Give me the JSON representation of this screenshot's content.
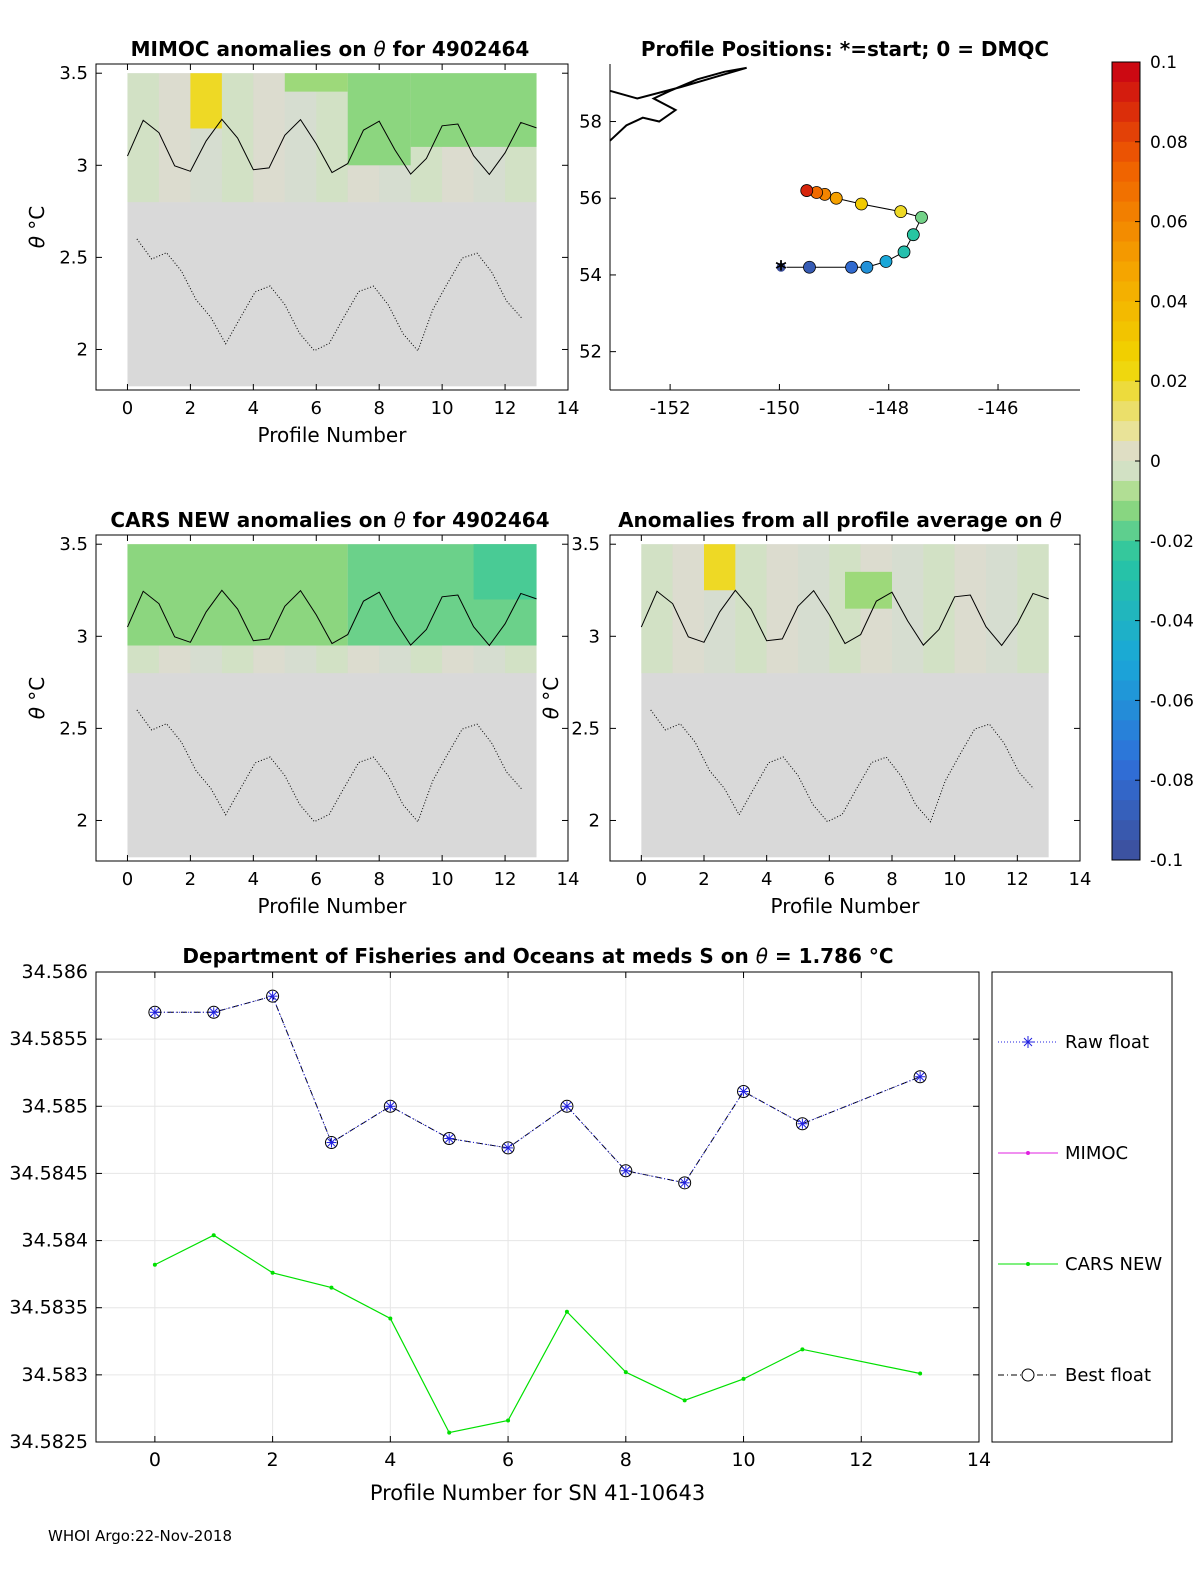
{
  "colors": {
    "neutral": "#d9d9d9",
    "raw_float": "#2020e0",
    "mimoc": "#e020e0",
    "cars": "#00e000",
    "best": "#000000"
  },
  "colorbar": {
    "ticks": [
      "0.1",
      "0.08",
      "0.06",
      "0.04",
      "0.02",
      "0",
      "-0.02",
      "-0.04",
      "-0.06",
      "-0.08",
      "-0.1"
    ],
    "range": [
      -0.1,
      0.1
    ],
    "colormap": "parula-jet"
  },
  "footer": "WHOI Argo:22-Nov-2018",
  "chart_data": [
    {
      "id": "mimoc",
      "type": "heatmap",
      "title_prefix": "MIMOC anomalies on",
      "title_symbol": "θ",
      "title_suffix": "for 4902464",
      "xlabel": "Profile Number",
      "ylabel_symbol": "θ",
      "ylabel_unit": "°C",
      "xlim": [
        -1,
        14
      ],
      "ylim": [
        1.78,
        3.55
      ],
      "xticks": [
        "0",
        "2",
        "4",
        "6",
        "8",
        "10",
        "12",
        "14"
      ],
      "yticks": [
        "2",
        "2.5",
        "3",
        "3.5"
      ],
      "anomaly_cells": [
        {
          "x0": 2,
          "x1": 3,
          "y0": 3.2,
          "y1": 3.5,
          "v": 0.02
        },
        {
          "x0": 7,
          "x1": 9,
          "y0": 3.0,
          "y1": 3.5,
          "v": -0.012
        },
        {
          "x0": 9,
          "x1": 13,
          "y0": 3.1,
          "y1": 3.5,
          "v": -0.012
        },
        {
          "x0": 5,
          "x1": 7,
          "y0": 3.4,
          "y1": 3.5,
          "v": -0.01
        }
      ]
    },
    {
      "id": "positions",
      "type": "scatter",
      "title": "Profile Positions: *=start; 0 = DMQC",
      "xlim": [
        -153.1,
        -144.5
      ],
      "ylim": [
        51,
        59.5
      ],
      "xticks": [
        "-152",
        "-150",
        "-148",
        "-146"
      ],
      "yticks": [
        "52",
        "54",
        "56",
        "58"
      ],
      "lon": [
        -149.97,
        -149.45,
        -148.68,
        -148.4,
        -148.05,
        -147.72,
        -147.55,
        -147.4,
        -147.78,
        -148.5,
        -148.96,
        -149.17,
        -149.32,
        -149.5
      ],
      "lat": [
        54.2,
        54.2,
        54.2,
        54.2,
        54.35,
        54.6,
        55.05,
        55.5,
        55.65,
        55.85,
        56.0,
        56.1,
        56.15,
        56.2
      ],
      "anomaly": [
        -0.1,
        -0.09,
        -0.08,
        -0.06,
        -0.05,
        -0.03,
        -0.025,
        -0.015,
        0.02,
        0.03,
        0.05,
        0.06,
        0.07,
        0.09
      ]
    },
    {
      "id": "cars",
      "type": "heatmap",
      "title_prefix": "CARS NEW anomalies on",
      "title_symbol": "θ",
      "title_suffix": "for 4902464",
      "xlabel": "Profile Number",
      "ylabel_symbol": "θ",
      "ylabel_unit": "°C",
      "xlim": [
        -1,
        14
      ],
      "ylim": [
        1.78,
        3.55
      ],
      "xticks": [
        "0",
        "2",
        "4",
        "6",
        "8",
        "10",
        "12",
        "14"
      ],
      "yticks": [
        "2",
        "2.5",
        "3",
        "3.5"
      ],
      "anomaly_cells": [
        {
          "x0": 0,
          "x1": 7,
          "y0": 2.95,
          "y1": 3.5,
          "v": -0.012
        },
        {
          "x0": 7,
          "x1": 13,
          "y0": 2.95,
          "y1": 3.5,
          "v": -0.016
        },
        {
          "x0": 11,
          "x1": 13,
          "y0": 3.2,
          "y1": 3.5,
          "v": -0.02
        }
      ]
    },
    {
      "id": "avg",
      "type": "heatmap",
      "title_prefix": "Anomalies from all profile average on",
      "title_symbol": "θ",
      "title_suffix": "",
      "xlabel": "Profile Number",
      "ylabel_symbol": "θ",
      "ylabel_unit": "°C",
      "xlim": [
        -1,
        14
      ],
      "ylim": [
        1.78,
        3.55
      ],
      "xticks": [
        "0",
        "2",
        "4",
        "6",
        "8",
        "10",
        "12",
        "14"
      ],
      "yticks": [
        "2",
        "2.5",
        "3",
        "3.5"
      ],
      "anomaly_cells": [
        {
          "x0": 2,
          "x1": 3,
          "y0": 3.25,
          "y1": 3.5,
          "v": 0.02
        },
        {
          "x0": 6.5,
          "x1": 8,
          "y0": 3.15,
          "y1": 3.35,
          "v": -0.01
        }
      ]
    },
    {
      "id": "salinity",
      "type": "line",
      "title_prefix": "Department of Fisheries and Oceans at meds S on",
      "title_symbol": "θ",
      "title_value": "= 1.786",
      "title_unit": "°C",
      "xlabel": "Profile Number for SN 41-10643",
      "xlim": [
        -1,
        14
      ],
      "ylim": [
        34.5825,
        34.586
      ],
      "xticks": [
        "0",
        "2",
        "4",
        "6",
        "8",
        "10",
        "12",
        "14"
      ],
      "yticks": [
        "34.5825",
        "34.583",
        "34.5835",
        "34.584",
        "34.5845",
        "34.585",
        "34.5855",
        "34.586"
      ],
      "series": [
        {
          "name": "Raw float",
          "x": [
            0,
            1,
            2,
            3,
            4,
            5,
            6,
            7,
            8,
            9,
            10,
            11,
            13
          ],
          "values": [
            34.5857,
            34.5857,
            34.58582,
            34.58473,
            34.585,
            34.58476,
            34.58469,
            34.585,
            34.58452,
            34.58443,
            34.58511,
            34.58487,
            34.58522
          ]
        },
        {
          "name": "MIMOC",
          "x": [],
          "values": []
        },
        {
          "name": "CARS NEW",
          "x": [
            0,
            1,
            2,
            3,
            4,
            5,
            6,
            7,
            8,
            9,
            10,
            11,
            13
          ],
          "values": [
            34.58382,
            34.58404,
            34.58376,
            34.58365,
            34.58342,
            34.58257,
            34.58266,
            34.58347,
            34.58302,
            34.58281,
            34.58297,
            34.58319,
            34.58301
          ]
        },
        {
          "name": "Best float",
          "x": [
            0,
            1,
            2,
            3,
            4,
            5,
            6,
            7,
            8,
            9,
            10,
            11,
            13
          ],
          "values": [
            34.5857,
            34.5857,
            34.58582,
            34.58473,
            34.585,
            34.58476,
            34.58469,
            34.585,
            34.58452,
            34.58443,
            34.58511,
            34.58487,
            34.58522
          ]
        }
      ],
      "legend": [
        "Raw float",
        "MIMOC",
        "CARS NEW",
        "Best float"
      ]
    }
  ]
}
